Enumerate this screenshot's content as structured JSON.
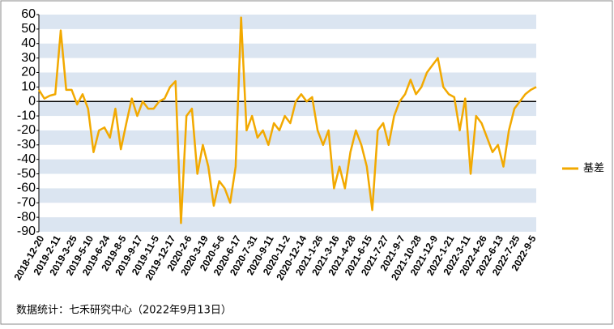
{
  "chart_data": {
    "type": "line",
    "source": "数据统计：七禾研究中心（2022年9月13日）",
    "categories": [
      "2018-12-20",
      null,
      null,
      "2019-2-11",
      null,
      null,
      "2019-3-25",
      null,
      null,
      "2019-5-10",
      null,
      null,
      "2019-6-24",
      null,
      null,
      "2019-8-5",
      null,
      null,
      "2019-9-17",
      null,
      null,
      "2019-11-5",
      null,
      null,
      "2019-12-17",
      null,
      null,
      "2020-2-6",
      null,
      null,
      "2020-3-19",
      null,
      null,
      "2020-5-6",
      null,
      null,
      "2020-6-17",
      null,
      null,
      "2020-7-31",
      null,
      null,
      "2020-9-11",
      null,
      null,
      "2020-11-2",
      null,
      null,
      "2020-12-14",
      null,
      null,
      "2021-1-26",
      null,
      null,
      "2021-3-16",
      null,
      null,
      "2021-4-28",
      null,
      null,
      "2021-6-15",
      null,
      null,
      "2021-7-27",
      null,
      null,
      "2021-9-7",
      null,
      null,
      "2021-10-28",
      null,
      null,
      "2021-12-9",
      null,
      null,
      "2022-1-21",
      null,
      null,
      "2022-3-11",
      null,
      null,
      "2022-4-26",
      null,
      null,
      "2022-6-13",
      null,
      null,
      "2022-7-25",
      null,
      null,
      "2022-9-5",
      null
    ],
    "series": [
      {
        "name": "基差",
        "color": "#f2a900",
        "values": [
          8,
          2,
          4,
          5,
          49,
          8,
          8,
          -2,
          5,
          -5,
          -35,
          -20,
          -18,
          -25,
          -5,
          -33,
          -15,
          2,
          -10,
          0,
          -5,
          -5,
          0,
          2,
          10,
          14,
          -84,
          -10,
          -5,
          -50,
          -30,
          -45,
          -72,
          -55,
          -60,
          -70,
          -45,
          58,
          -20,
          -10,
          -25,
          -20,
          -30,
          -15,
          -20,
          -10,
          -15,
          0,
          5,
          0,
          3,
          -20,
          -30,
          -20,
          -60,
          -45,
          -60,
          -35,
          -20,
          -30,
          -45,
          -75,
          -20,
          -15,
          -30,
          -10,
          0,
          5,
          15,
          5,
          10,
          20,
          25,
          30,
          10,
          5,
          3,
          -20,
          2,
          -50,
          -10,
          -15,
          -25,
          -35,
          -30,
          -45,
          -20,
          -5,
          0,
          5,
          8,
          10
        ]
      }
    ],
    "ylim": [
      -90,
      60
    ],
    "yticks": [
      60,
      50,
      40,
      30,
      20,
      10,
      0,
      -10,
      -20,
      -30,
      -40,
      -50,
      -60,
      -70,
      -80,
      -90
    ],
    "legend": "right"
  }
}
